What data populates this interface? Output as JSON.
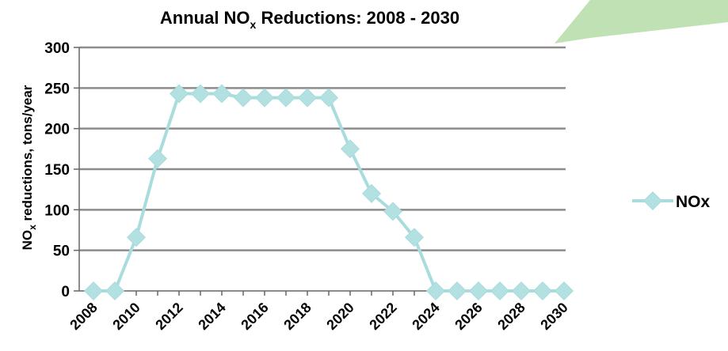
{
  "colors": {
    "series": "#a9dcdd",
    "marker": "#b3e0e0",
    "grid": "#8c8c8c",
    "axis": "#666666",
    "accent_green": "#a9d79b"
  },
  "chart_data": {
    "type": "line",
    "title": "Annual NOx Reductions:  2008 - 2030",
    "title_parts": {
      "pre": "Annual NO",
      "sub": "x",
      "post": " Reductions:  2008 - 2030"
    },
    "xlabel": "",
    "ylabel": "NOx reductions, tons/year",
    "ylabel_parts": {
      "pre": "NO",
      "sub": "x",
      "post": " reductions, tons/year"
    },
    "x": [
      2008,
      2009,
      2010,
      2011,
      2012,
      2013,
      2014,
      2015,
      2016,
      2017,
      2018,
      2019,
      2020,
      2021,
      2022,
      2023,
      2024,
      2025,
      2026,
      2027,
      2028,
      2029,
      2030
    ],
    "x_tick_labels": [
      "2008",
      "2010",
      "2012",
      "2014",
      "2016",
      "2018",
      "2020",
      "2022",
      "2024",
      "2026",
      "2028",
      "2030"
    ],
    "ylim": [
      0,
      300
    ],
    "y_ticks": [
      0,
      50,
      100,
      150,
      200,
      250,
      300
    ],
    "grid": true,
    "legend_position": "right",
    "series": [
      {
        "name": "NOx",
        "values": [
          0,
          0,
          66,
          163,
          243,
          243,
          243,
          238,
          238,
          238,
          238,
          238,
          175,
          120,
          98,
          66,
          0,
          0,
          0,
          0,
          0,
          0,
          0
        ]
      }
    ]
  }
}
